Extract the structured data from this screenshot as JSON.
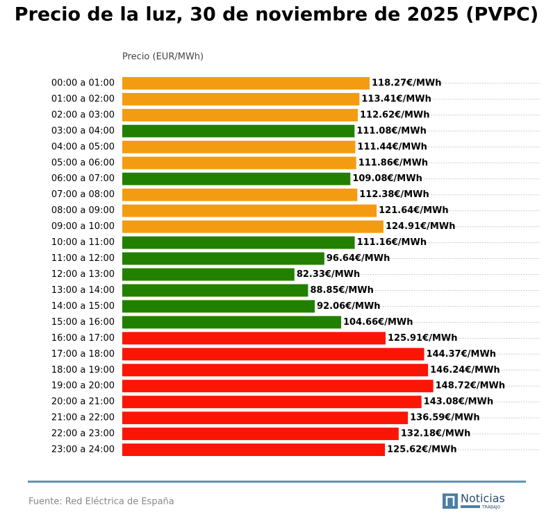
{
  "chart_data": {
    "type": "barh",
    "title": "Precio de la luz, 30 de noviembre de 2025 (PVPC)",
    "x_label": "Precio (EUR/MWh)",
    "categories": [
      "00:00 a 01:00",
      "01:00 a 02:00",
      "02:00 a 03:00",
      "03:00 a 04:00",
      "04:00 a 05:00",
      "05:00 a 06:00",
      "06:00 a 07:00",
      "07:00 a 08:00",
      "08:00 a 09:00",
      "09:00 a 10:00",
      "10:00 a 11:00",
      "11:00 a 12:00",
      "12:00 a 13:00",
      "13:00 a 14:00",
      "14:00 a 15:00",
      "15:00 a 16:00",
      "16:00 a 17:00",
      "17:00 a 18:00",
      "18:00 a 19:00",
      "19:00 a 20:00",
      "20:00 a 21:00",
      "21:00 a 22:00",
      "22:00 a 23:00",
      "23:00 a 24:00"
    ],
    "values": [
      118.27,
      113.41,
      112.62,
      111.08,
      111.44,
      111.86,
      109.08,
      112.38,
      121.64,
      124.91,
      111.16,
      96.64,
      82.33,
      88.85,
      92.06,
      104.66,
      125.91,
      144.37,
      146.24,
      148.72,
      143.08,
      136.59,
      132.18,
      125.62
    ],
    "value_labels": [
      "118.27€/MWh",
      "113.41€/MWh",
      "112.62€/MWh",
      "111.08€/MWh",
      "111.44€/MWh",
      "111.86€/MWh",
      "109.08€/MWh",
      "112.38€/MWh",
      "121.64€/MWh",
      "124.91€/MWh",
      "111.16€/MWh",
      "96.64€/MWh",
      "82.33€/MWh",
      "88.85€/MWh",
      "92.06€/MWh",
      "104.66€/MWh",
      "125.91€/MWh",
      "144.37€/MWh",
      "146.24€/MWh",
      "148.72€/MWh",
      "143.08€/MWh",
      "136.59€/MWh",
      "132.18€/MWh",
      "125.62€/MWh"
    ],
    "colors": [
      "#f39c12",
      "#f39c12",
      "#f39c12",
      "#228000",
      "#f39c12",
      "#f39c12",
      "#228000",
      "#f39c12",
      "#f39c12",
      "#f39c12",
      "#228000",
      "#228000",
      "#228000",
      "#228000",
      "#228000",
      "#228000",
      "#fa1505",
      "#fa1505",
      "#fa1505",
      "#fa1505",
      "#fa1505",
      "#fa1505",
      "#fa1505",
      "#fa1505"
    ],
    "xlim": [
      0,
      200
    ],
    "source": "Fuente: Red Eléctrica de España"
  },
  "logo": {
    "name": "Noticias",
    "tagline": "TRABAJO"
  }
}
